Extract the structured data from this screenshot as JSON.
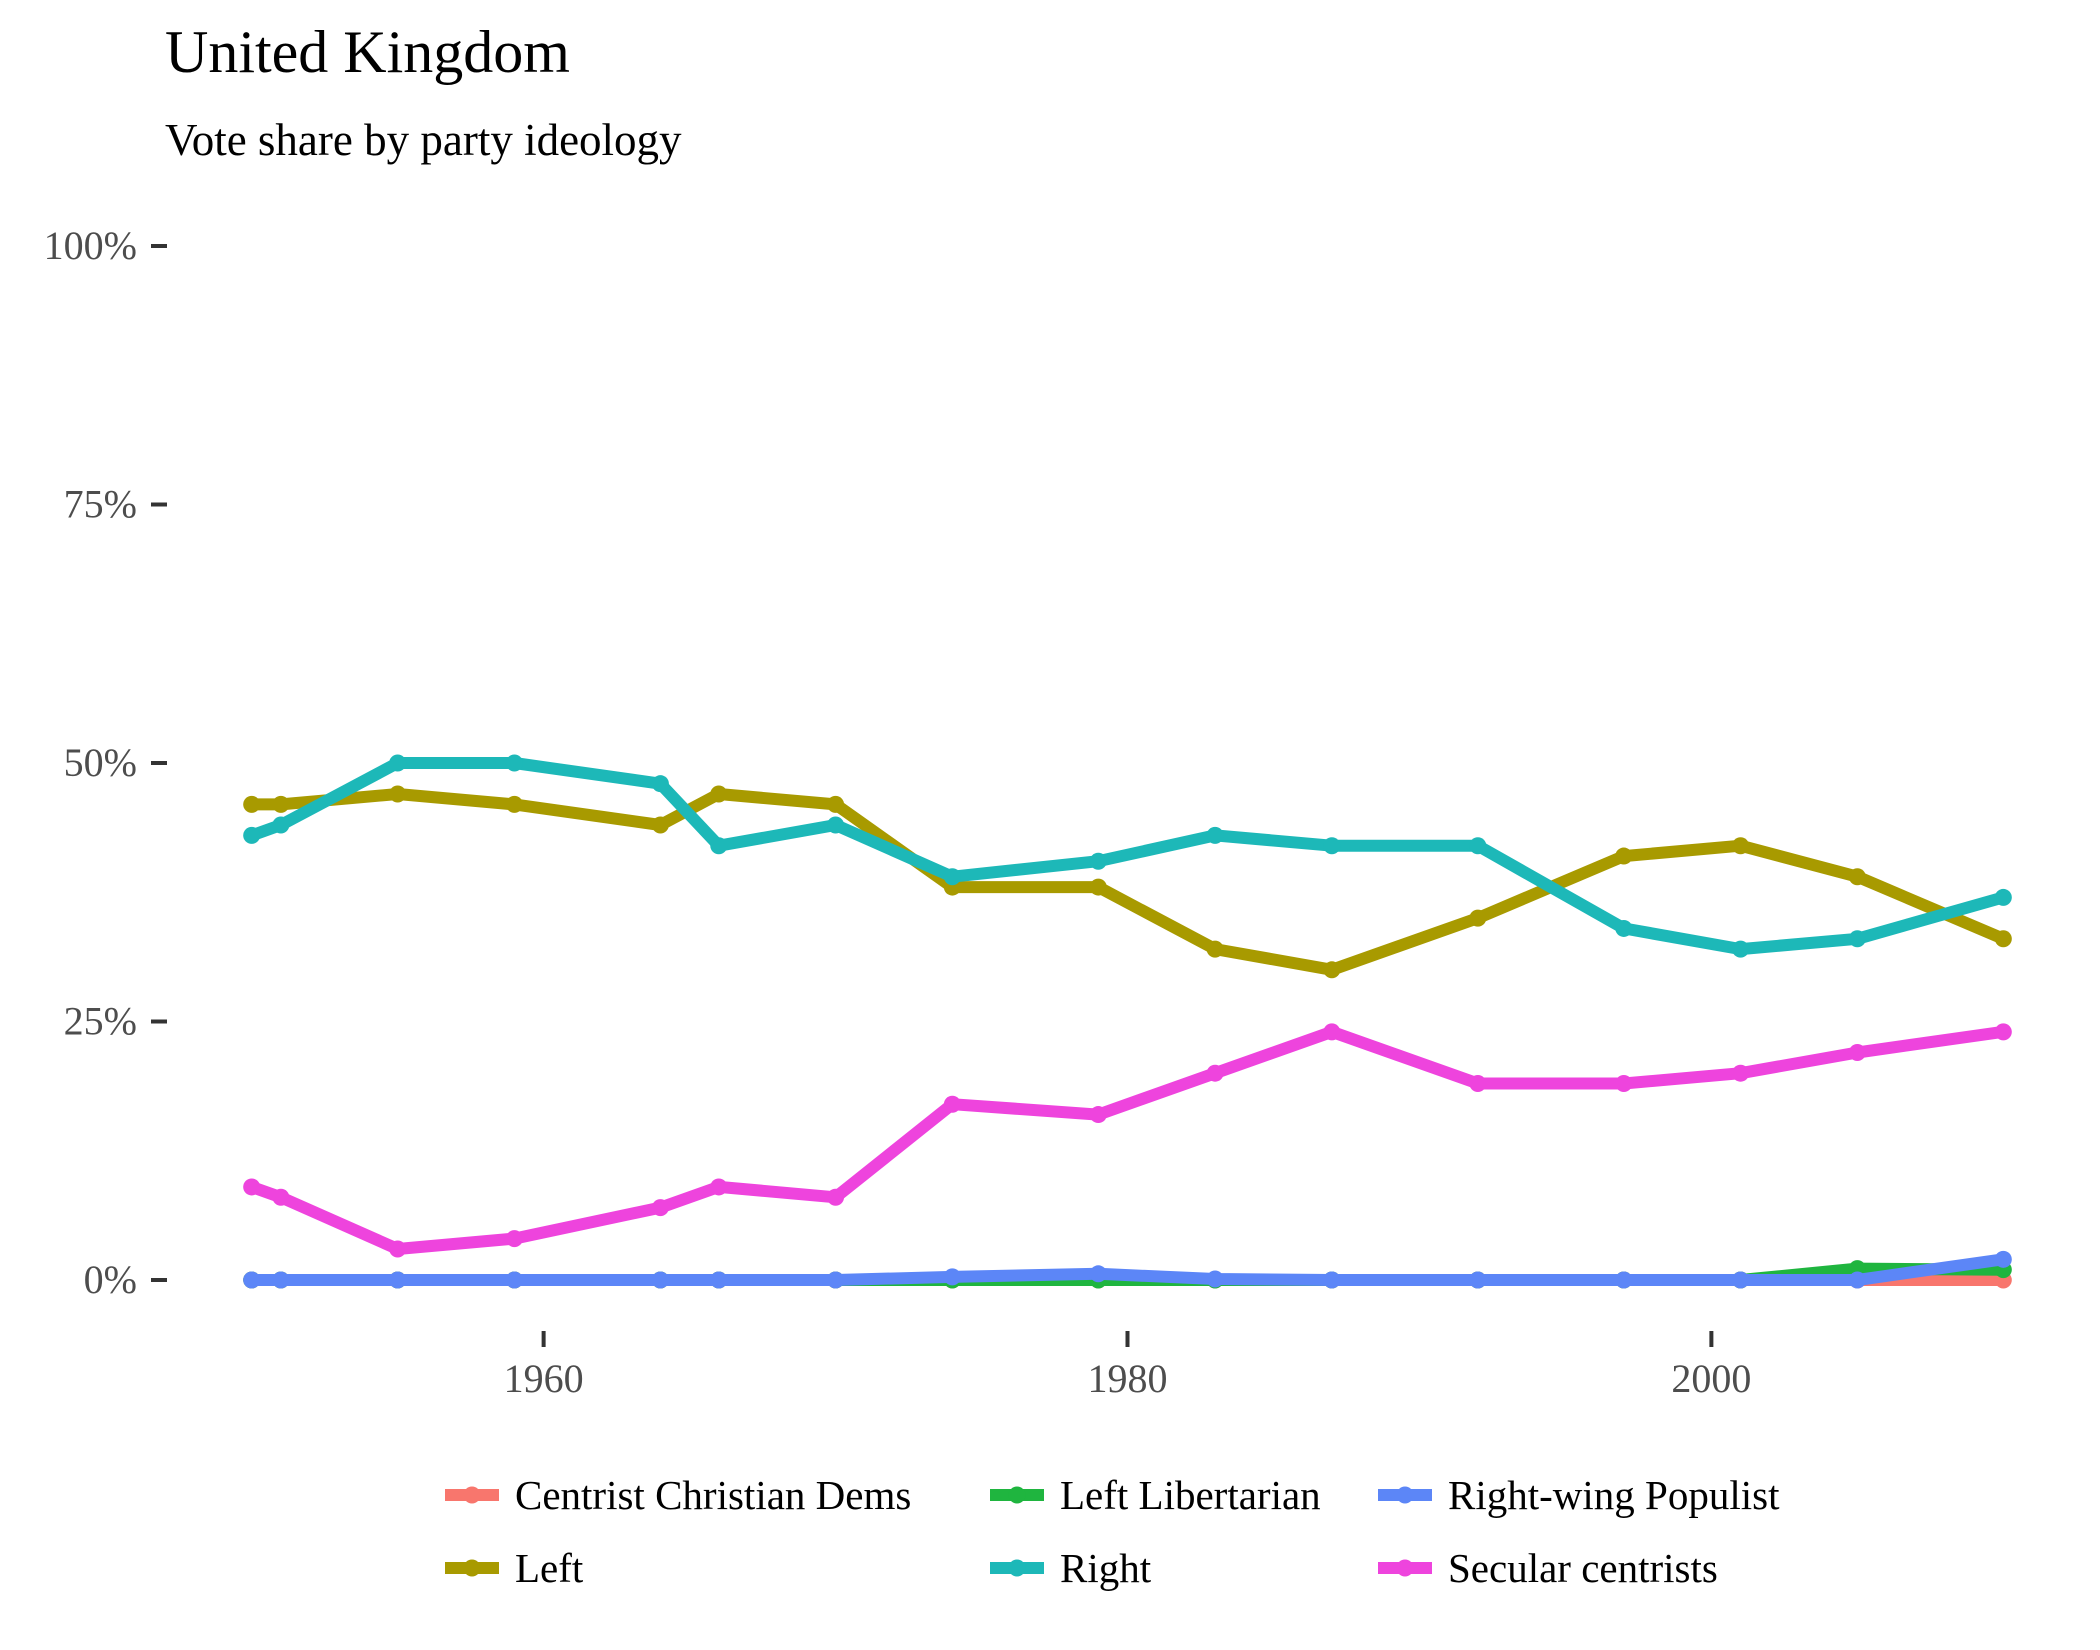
{
  "chart_data": {
    "type": "line",
    "title": "United Kingdom",
    "subtitle": "Vote share by party ideology",
    "xlabel": "",
    "ylabel": "",
    "x": [
      1950,
      1951,
      1955,
      1959,
      1964,
      1966,
      1970,
      1974,
      1979,
      1983,
      1987,
      1992,
      1997,
      2001,
      2005,
      2010
    ],
    "xlim": [
      1949.6,
      2010.4
    ],
    "ylim": [
      0,
      1
    ],
    "x_ticks": [
      {
        "value": 1960,
        "label": "1960"
      },
      {
        "value": 1980,
        "label": "1980"
      },
      {
        "value": 2000,
        "label": "2000"
      }
    ],
    "y_ticks": [
      {
        "value": 0,
        "label": "0%"
      },
      {
        "value": 0.25,
        "label": "25%"
      },
      {
        "value": 0.5,
        "label": "50%"
      },
      {
        "value": 0.75,
        "label": "75%"
      },
      {
        "value": 1,
        "label": "100%"
      }
    ],
    "grid": false,
    "legend_position": "bottom",
    "series": [
      {
        "name": "Centrist Christian Dems",
        "color": "#F8766D",
        "values": [
          0,
          0,
          0,
          0,
          0,
          0,
          0,
          0,
          0,
          0,
          0,
          0,
          0,
          0,
          0,
          0
        ]
      },
      {
        "name": "Left",
        "color": "#A89A00",
        "values": [
          0.46,
          0.46,
          0.47,
          0.46,
          0.44,
          0.47,
          0.46,
          0.38,
          0.38,
          0.32,
          0.3,
          0.35,
          0.41,
          0.42,
          0.39,
          0.33
        ]
      },
      {
        "name": "Left Libertarian",
        "color": "#1FB53F",
        "values": [
          0,
          0,
          0,
          0,
          0,
          0,
          0,
          0,
          0,
          0,
          0,
          0,
          0,
          0,
          0.011,
          0.01
        ]
      },
      {
        "name": "Right",
        "color": "#1DB8B8",
        "values": [
          0.43,
          0.44,
          0.5,
          0.5,
          0.48,
          0.42,
          0.44,
          0.39,
          0.405,
          0.43,
          0.42,
          0.42,
          0.34,
          0.32,
          0.33,
          0.37
        ]
      },
      {
        "name": "Right-wing Populist",
        "color": "#5C86F7",
        "values": [
          0,
          0,
          0,
          0,
          0,
          0,
          0,
          0.003,
          0.006,
          0.001,
          0,
          0,
          0,
          0,
          0,
          0.02
        ]
      },
      {
        "name": "Secular centrists",
        "color": "#EE44DD",
        "values": [
          0.09,
          0.08,
          0.03,
          0.04,
          0.07,
          0.09,
          0.08,
          0.17,
          0.16,
          0.2,
          0.24,
          0.19,
          0.19,
          0.2,
          0.22,
          0.24
        ]
      }
    ],
    "draw_order": [
      "Centrist Christian Dems",
      "Left Libertarian",
      "Secular centrists",
      "Left",
      "Right",
      "Right-wing Populist"
    ],
    "legend_rows": [
      [
        "Centrist Christian Dems",
        "Left Libertarian",
        "Right-wing Populist"
      ],
      [
        "Left",
        "Right",
        "Secular centrists"
      ]
    ]
  }
}
